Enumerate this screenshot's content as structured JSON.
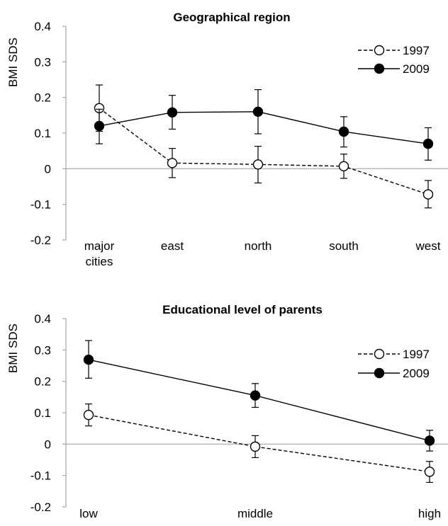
{
  "chart_data": [
    {
      "type": "line",
      "title": "Geographical region",
      "xlabel": "",
      "ylabel": "BMI SDS",
      "ylim": [
        -0.2,
        0.4
      ],
      "yticks": [
        "0.4",
        "0.3",
        "0.2",
        "0.1",
        "0",
        "-0.1",
        "-0.2"
      ],
      "categories": [
        "major cities",
        "east",
        "north",
        "south",
        "west"
      ],
      "category_lines": [
        [
          "major",
          "cities"
        ],
        [
          "east"
        ],
        [
          "north"
        ],
        [
          "south"
        ],
        [
          "west"
        ]
      ],
      "legend_position": "top-right",
      "grid": false,
      "series": [
        {
          "name": "1997",
          "style": "dashed",
          "marker": "open-circle",
          "values": [
            0.17,
            0.016,
            0.012,
            0.007,
            -0.072
          ],
          "err_low": [
            0.105,
            -0.025,
            -0.04,
            -0.027,
            -0.11
          ],
          "err_high": [
            0.235,
            0.057,
            0.063,
            0.041,
            -0.033
          ]
        },
        {
          "name": "2009",
          "style": "solid",
          "marker": "filled-circle",
          "values": [
            0.12,
            0.158,
            0.16,
            0.104,
            0.07
          ],
          "err_low": [
            0.07,
            0.111,
            0.098,
            0.061,
            0.024
          ],
          "err_high": [
            0.167,
            0.206,
            0.222,
            0.146,
            0.115
          ]
        }
      ]
    },
    {
      "type": "line",
      "title": "Educational level of parents",
      "xlabel": "",
      "ylabel": "BMI SDS",
      "ylim": [
        -0.2,
        0.4
      ],
      "yticks": [
        "0.4",
        "0.3",
        "0.2",
        "0.1",
        "0",
        "-0.1",
        "-0.2"
      ],
      "categories": [
        "low",
        "middle",
        "high"
      ],
      "category_lines": [
        [
          "low"
        ],
        [
          "middle"
        ],
        [
          "high"
        ]
      ],
      "legend_position": "top-right",
      "grid": false,
      "series": [
        {
          "name": "1997",
          "style": "dashed",
          "marker": "open-circle",
          "values": [
            0.093,
            -0.008,
            -0.088
          ],
          "err_low": [
            0.058,
            -0.043,
            -0.122
          ],
          "err_high": [
            0.128,
            0.027,
            -0.055
          ]
        },
        {
          "name": "2009",
          "style": "solid",
          "marker": "filled-circle",
          "values": [
            0.269,
            0.155,
            0.011
          ],
          "err_low": [
            0.21,
            0.117,
            -0.022
          ],
          "err_high": [
            0.33,
            0.193,
            0.044
          ]
        }
      ]
    }
  ]
}
